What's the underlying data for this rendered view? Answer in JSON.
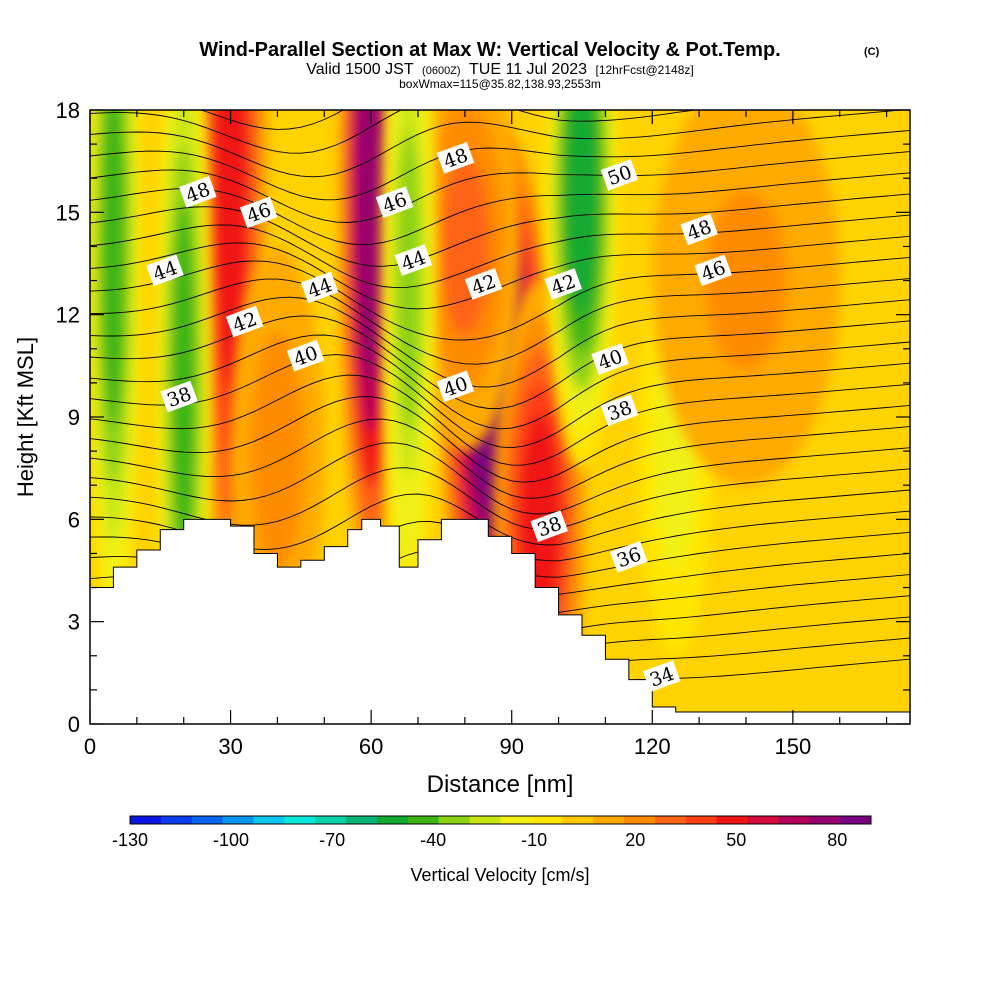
{
  "chart_data": {
    "type": "heatmap",
    "title": "Wind-Parallel Section at Max W: Vertical Velocity & Pot.Temp.",
    "title_mark": "(C)",
    "subtitle_main": "Valid 1500 JST",
    "subtitle_z": "(0600Z)",
    "subtitle_date": "TUE 11 Jul 2023",
    "subtitle_fcst": "[12hrFcst@2148z]",
    "subtitle_box": "boxWmax=115@35.82,138.93,2553m",
    "xlabel": "Distance [nm]",
    "ylabel": "Height [Kft MSL]",
    "xlim": [
      0,
      175
    ],
    "ylim": [
      0,
      18
    ],
    "x_ticks": [
      0,
      30,
      60,
      90,
      120,
      150
    ],
    "y_ticks": [
      0,
      3,
      6,
      9,
      12,
      15,
      18
    ],
    "colorbar": {
      "label": "Vertical Velocity [cm/s]",
      "range": [
        -130,
        90
      ],
      "tick_labels": [
        -130,
        -100,
        -70,
        -40,
        -10,
        20,
        50,
        80
      ],
      "colors": [
        "#0a14e6",
        "#0a3cf0",
        "#0a64f0",
        "#0a96f0",
        "#0ac8f0",
        "#0aeadc",
        "#0ad2aa",
        "#0ab478",
        "#14aa32",
        "#3cb414",
        "#8cd214",
        "#c8e614",
        "#f0f014",
        "#ffe600",
        "#ffc800",
        "#ffaa00",
        "#ff8c00",
        "#ff6414",
        "#ff3c14",
        "#f01414",
        "#d70a3c",
        "#b4005a",
        "#96006e",
        "#780082"
      ]
    },
    "terrain_kft": [
      [
        0,
        4.0
      ],
      [
        5,
        4.6
      ],
      [
        10,
        5.1
      ],
      [
        15,
        5.7
      ],
      [
        20,
        6.0
      ],
      [
        25,
        6.0
      ],
      [
        30,
        5.8
      ],
      [
        35,
        5.0
      ],
      [
        40,
        4.6
      ],
      [
        45,
        4.8
      ],
      [
        50,
        5.2
      ],
      [
        55,
        5.7
      ],
      [
        58,
        6.0
      ],
      [
        62,
        5.8
      ],
      [
        66,
        4.6
      ],
      [
        70,
        5.4
      ],
      [
        75,
        6.0
      ],
      [
        80,
        6.0
      ],
      [
        85,
        5.5
      ],
      [
        90,
        5.0
      ],
      [
        95,
        4.0
      ],
      [
        100,
        3.2
      ],
      [
        105,
        2.6
      ],
      [
        110,
        1.9
      ],
      [
        115,
        1.3
      ],
      [
        120,
        0.5
      ],
      [
        125,
        0.35
      ],
      [
        175,
        0.35
      ]
    ],
    "w_cells": [
      {
        "x": 30,
        "z": 16,
        "sx": 4,
        "sz": 7,
        "w": 50
      },
      {
        "x": 60,
        "z": 15.5,
        "sx": 3.5,
        "sz": 6,
        "w": 80
      },
      {
        "x": 87,
        "z": 9.5,
        "sx": 6,
        "sz": 4,
        "w": 90
      },
      {
        "x": 96,
        "z": 6,
        "sx": 5,
        "sz": 3.5,
        "w": 45
      },
      {
        "x": 80,
        "z": 14,
        "sx": 6,
        "sz": 3,
        "w": 30
      },
      {
        "x": 20,
        "z": 10,
        "sx": 3,
        "sz": 6,
        "w": -45
      },
      {
        "x": 68,
        "z": 13,
        "sx": 3,
        "sz": 5,
        "w": -30
      },
      {
        "x": 105,
        "z": 15.5,
        "sx": 4,
        "sz": 4,
        "w": -50
      },
      {
        "x": 5,
        "z": 14,
        "sx": 3,
        "sz": 6,
        "w": -40
      },
      {
        "x": 125,
        "z": 8,
        "sx": 4,
        "sz": 3,
        "w": -15
      },
      {
        "x": 40,
        "z": 8,
        "sx": 5,
        "sz": 3,
        "w": 25
      },
      {
        "x": 140,
        "z": 13,
        "sx": 10,
        "sz": 3,
        "w": 20
      }
    ],
    "theta_contour_labels": [
      {
        "text": "48",
        "x": 23,
        "z": 15.6
      },
      {
        "text": "46",
        "x": 36,
        "z": 15.0
      },
      {
        "text": "44",
        "x": 16,
        "z": 13.3
      },
      {
        "text": "42",
        "x": 33,
        "z": 11.8
      },
      {
        "text": "44",
        "x": 49,
        "z": 12.8
      },
      {
        "text": "40",
        "x": 46,
        "z": 10.8
      },
      {
        "text": "38",
        "x": 19,
        "z": 9.6
      },
      {
        "text": "46",
        "x": 65,
        "z": 15.3
      },
      {
        "text": "48",
        "x": 78,
        "z": 16.6
      },
      {
        "text": "44",
        "x": 69,
        "z": 13.6
      },
      {
        "text": "42",
        "x": 84,
        "z": 12.9
      },
      {
        "text": "40",
        "x": 78,
        "z": 9.9
      },
      {
        "text": "50",
        "x": 113,
        "z": 16.1
      },
      {
        "text": "48",
        "x": 130,
        "z": 14.5
      },
      {
        "text": "46",
        "x": 133,
        "z": 13.3
      },
      {
        "text": "42",
        "x": 101,
        "z": 12.9
      },
      {
        "text": "40",
        "x": 111,
        "z": 10.7
      },
      {
        "text": "38",
        "x": 113,
        "z": 9.2
      },
      {
        "text": "38",
        "x": 98,
        "z": 5.8
      },
      {
        "text": "36",
        "x": 115,
        "z": 4.9
      },
      {
        "text": "34",
        "x": 122,
        "z": 1.4
      }
    ]
  }
}
